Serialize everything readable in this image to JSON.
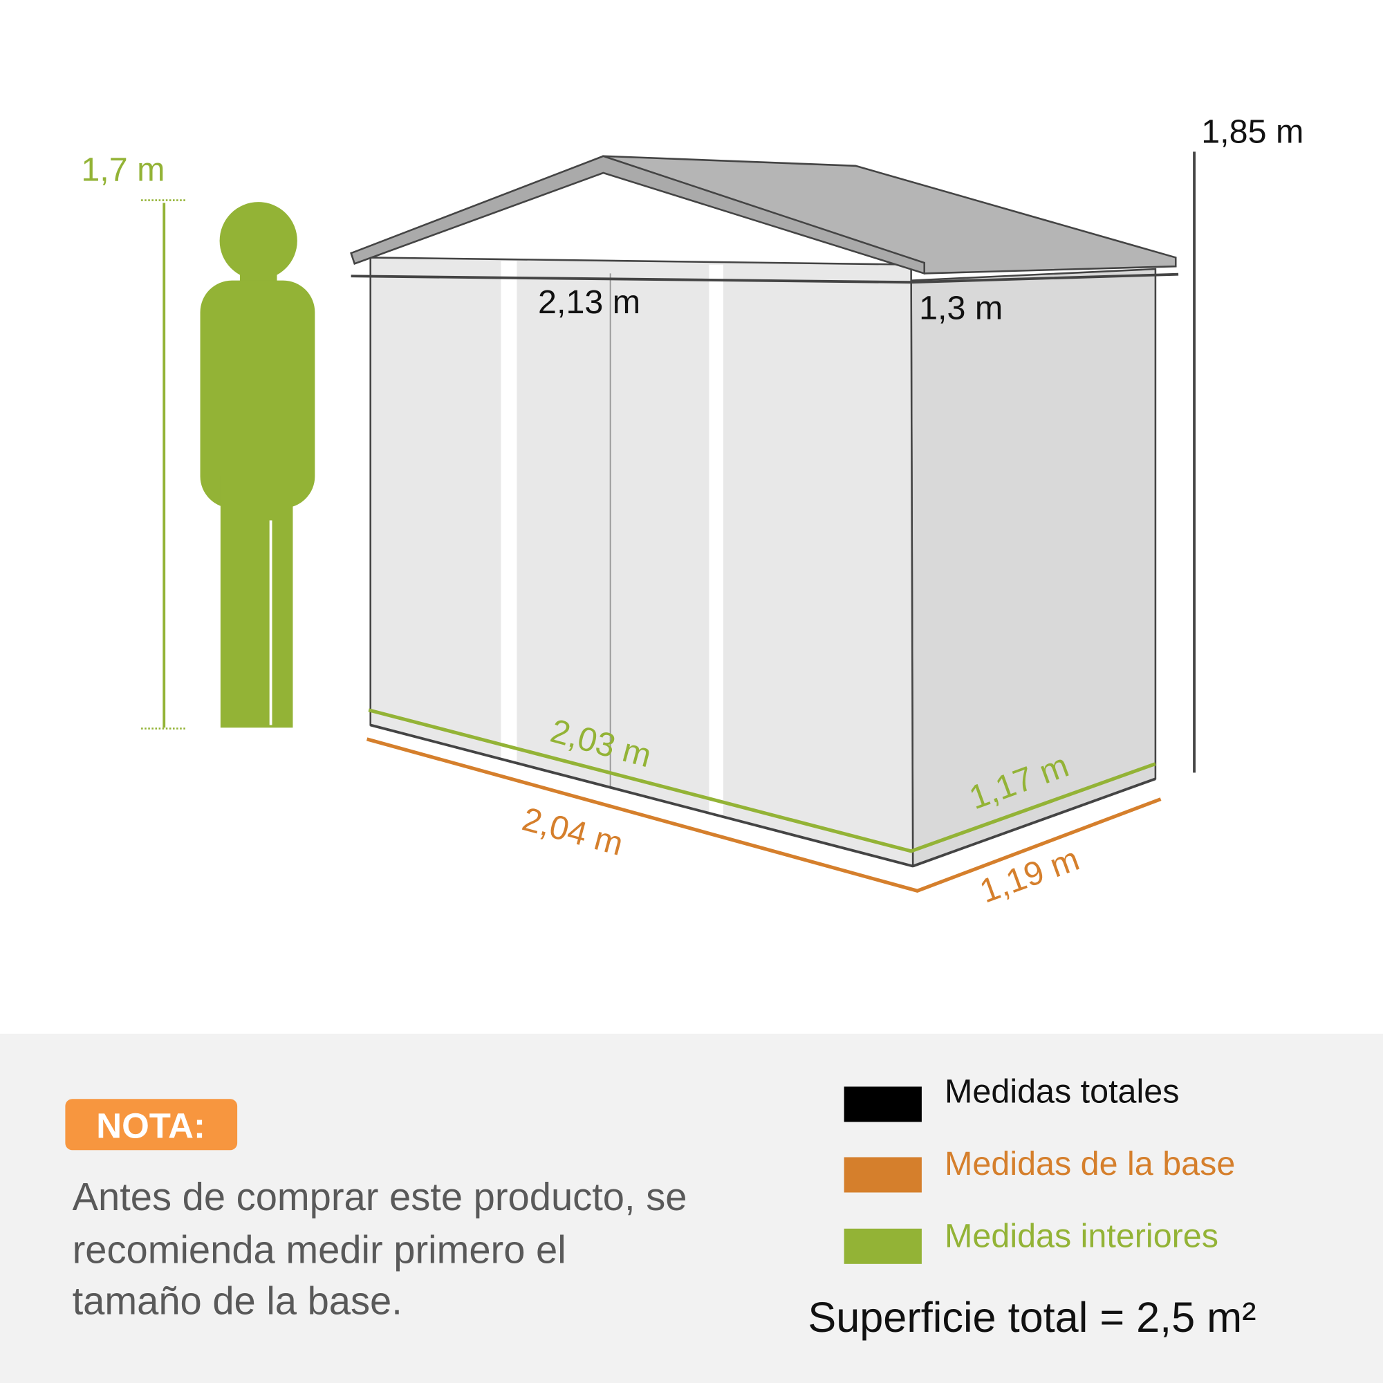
{
  "colors": {
    "total": "#000000",
    "base": "#d57f2c",
    "interior": "#93b336",
    "nota_badge": "#f7963f",
    "panel_bg": "#f2f2f2",
    "note_text": "#595959"
  },
  "dimensions": {
    "person_height": "1,7 m",
    "total_height": "1,85 m",
    "total_width": "2,13 m",
    "total_depth": "1,3 m",
    "interior_width": "2,03 m",
    "interior_depth": "1,17 m",
    "base_width": "2,04 m",
    "base_depth": "1,19 m"
  },
  "note": {
    "badge": "NOTA:",
    "lines": [
      "Antes de comprar este producto, se",
      "recomienda medir primero el",
      "tamaño de la base."
    ]
  },
  "legend": [
    {
      "label": "Medidas totales",
      "color": "#000000"
    },
    {
      "label": "Medidas de la base",
      "color": "#d57f2c"
    },
    {
      "label": "Medidas interiores",
      "color": "#93b336"
    }
  ],
  "surface": "Superficie total = 2,5 m²"
}
